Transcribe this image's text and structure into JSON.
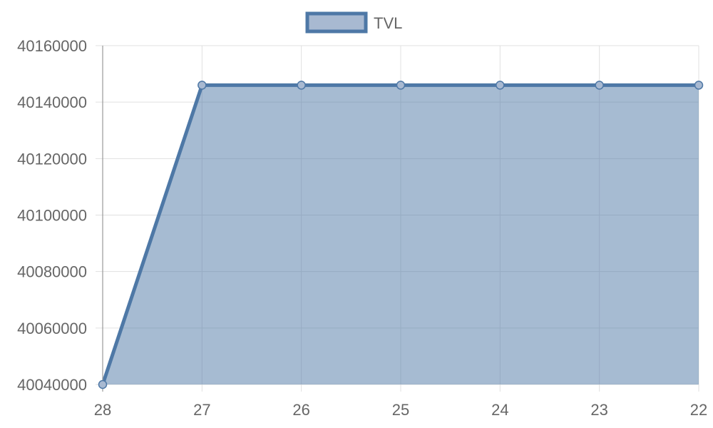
{
  "chart_data": {
    "type": "area",
    "x": [
      "28",
      "27",
      "26",
      "25",
      "24",
      "23",
      "22"
    ],
    "series": [
      {
        "name": "TVL",
        "values": [
          40040000,
          40146000,
          40146000,
          40146000,
          40146000,
          40146000,
          40146000
        ]
      }
    ],
    "yticks": [
      "40040000",
      "40060000",
      "40080000",
      "40100000",
      "40120000",
      "40140000",
      "40160000"
    ],
    "ylim": [
      40040000,
      40160000
    ],
    "grid": true,
    "legend_position": "top-center",
    "colors": {
      "line": "#4e78a6",
      "fill": "#a8b9d1",
      "grid": "#e0e0e0",
      "axis": "#999999",
      "text": "#666666"
    }
  }
}
